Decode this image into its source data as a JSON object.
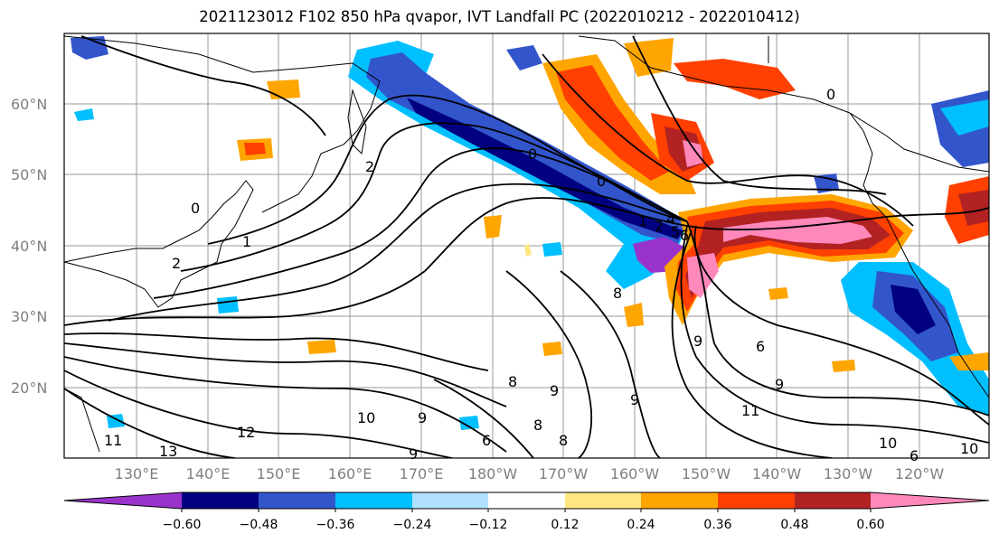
{
  "title": "2021123012 F102 850 hPa qvapor, IVT Landfall PC (2022010212 - 2022010412)",
  "lat_labels": [
    "20°N",
    "30°N",
    "40°N",
    "50°N",
    "60°N"
  ],
  "lon_labels": [
    "130°E",
    "140°E",
    "150°E",
    "160°E",
    "170°E",
    "180°W",
    "170°W",
    "160°W",
    "150°W",
    "140°W",
    "130°W",
    "120°W"
  ],
  "colorbar": {
    "ticks": [
      "−0.60",
      "−0.48",
      "−0.36",
      "−0.24",
      "−0.12",
      "0.12",
      "0.24",
      "0.36",
      "0.48",
      "0.60"
    ],
    "colors": [
      "#9933cc",
      "#000080",
      "#3355cc",
      "#00bfff",
      "#b0e0ff",
      "#ffffff",
      "#ffe680",
      "#ffa500",
      "#ff4000",
      "#b22222",
      "#ff88bb"
    ]
  },
  "contour_labels": [
    "2",
    "1",
    "2",
    "0",
    "0",
    "0",
    "1",
    "2",
    "4",
    "5",
    "6",
    "8",
    "6",
    "9",
    "9",
    "8",
    "8",
    "8",
    "9",
    "9",
    "10",
    "11",
    "12",
    "13",
    "9",
    "9",
    "10",
    "10",
    "11",
    "0",
    "6",
    "6"
  ]
}
